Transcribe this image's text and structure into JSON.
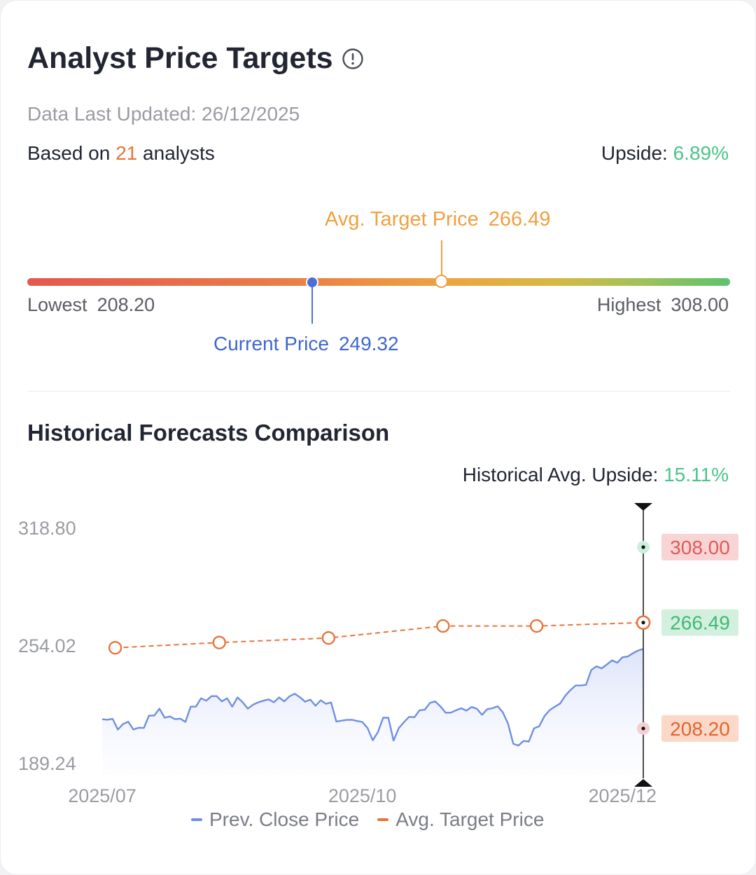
{
  "header": {
    "title": "Analyst Price Targets",
    "info_icon": "info-circle-icon",
    "last_updated": "Data Last Updated: 26/12/2025",
    "based_on_prefix": "Based on",
    "analysts_count": "21",
    "based_on_suffix": "analysts",
    "upside_label": "Upside:",
    "upside_value": "6.89%"
  },
  "price_range": {
    "avg_target_label": "Avg. Target Price",
    "avg_target_value": "266.49",
    "lowest_label": "Lowest",
    "lowest_value": "208.20",
    "highest_label": "Highest",
    "highest_value": "308.00",
    "current_label": "Current Price",
    "current_value": "249.32"
  },
  "historical": {
    "title": "Historical Forecasts Comparison",
    "avg_upside_label": "Historical Avg. Upside:",
    "avg_upside_value": "15.11%"
  },
  "colors": {
    "accent_orange": "#e8743b",
    "positive_green": "#4cc38a",
    "current_blue": "#4a6fd6",
    "target_orange": "#f0a040",
    "high_red": "#e5574e"
  },
  "chart_data": {
    "type": "line",
    "y_ticks": [
      "318.80",
      "254.02",
      "189.24"
    ],
    "ylim": [
      189.24,
      318.8
    ],
    "x_ticks": [
      "2025/07",
      "2025/10",
      "2025/12"
    ],
    "grid": false,
    "legend_position": "bottom",
    "series": [
      {
        "name": "Prev. Close Price",
        "color": "#6f8fe0",
        "points": [
          [
            0,
            213.3
          ],
          [
            2,
            213.0
          ],
          [
            4,
            213.5
          ],
          [
            6,
            207.6
          ],
          [
            8,
            210.6
          ],
          [
            10,
            211.9
          ],
          [
            12,
            207.6
          ],
          [
            14,
            208.6
          ],
          [
            16,
            208.5
          ],
          [
            18,
            215.3
          ],
          [
            20,
            215.3
          ],
          [
            22,
            219.1
          ],
          [
            24,
            214.1
          ],
          [
            26,
            214.8
          ],
          [
            28,
            213.3
          ],
          [
            30,
            213.6
          ],
          [
            32,
            211.8
          ],
          [
            34,
            220.2
          ],
          [
            36,
            220.2
          ],
          [
            38,
            224.8
          ],
          [
            40,
            223.5
          ],
          [
            42,
            226.0
          ],
          [
            44,
            226.0
          ],
          [
            46,
            223.1
          ],
          [
            48,
            224.8
          ],
          [
            50,
            220.2
          ],
          [
            52,
            225.3
          ],
          [
            54,
            222.6
          ],
          [
            56,
            219.1
          ],
          [
            58,
            221.3
          ],
          [
            60,
            222.6
          ],
          [
            62,
            223.5
          ],
          [
            64,
            224.2
          ],
          [
            66,
            222.6
          ],
          [
            68,
            225.3
          ],
          [
            70,
            223.1
          ],
          [
            72,
            225.9
          ],
          [
            74,
            227.3
          ],
          [
            76,
            225.4
          ],
          [
            78,
            222.9
          ],
          [
            80,
            224.1
          ],
          [
            82,
            220.7
          ],
          [
            84,
            223.7
          ],
          [
            86,
            221.8
          ],
          [
            88,
            222.5
          ],
          [
            90,
            212.0
          ],
          [
            92,
            212.5
          ],
          [
            94,
            212.9
          ],
          [
            96,
            213.0
          ],
          [
            98,
            212.3
          ],
          [
            100,
            211.8
          ],
          [
            102,
            208.4
          ],
          [
            104,
            201.7
          ],
          [
            106,
            206.2
          ],
          [
            108,
            214.1
          ],
          [
            110,
            214.1
          ],
          [
            112,
            201.5
          ],
          [
            114,
            208.4
          ],
          [
            116,
            211.7
          ],
          [
            118,
            214.6
          ],
          [
            120,
            214.4
          ],
          [
            122,
            218.2
          ],
          [
            124,
            218.5
          ],
          [
            126,
            222.3
          ],
          [
            128,
            223.1
          ],
          [
            130,
            220.4
          ],
          [
            132,
            216.9
          ],
          [
            134,
            216.9
          ],
          [
            136,
            218.2
          ],
          [
            138,
            219.3
          ],
          [
            140,
            218.0
          ],
          [
            142,
            220.0
          ],
          [
            144,
            219.1
          ],
          [
            146,
            215.7
          ],
          [
            148,
            218.8
          ],
          [
            150,
            219.3
          ],
          [
            152,
            220.4
          ],
          [
            154,
            217.1
          ],
          [
            156,
            210.8
          ],
          [
            158,
            199.8
          ],
          [
            160,
            198.8
          ],
          [
            162,
            201.3
          ],
          [
            164,
            201.0
          ],
          [
            166,
            208.3
          ],
          [
            168,
            209.4
          ],
          [
            170,
            215.0
          ],
          [
            172,
            218.3
          ],
          [
            174,
            220.2
          ],
          [
            176,
            221.9
          ],
          [
            178,
            226.2
          ],
          [
            180,
            229.3
          ],
          [
            182,
            231.9
          ],
          [
            184,
            231.9
          ],
          [
            186,
            232.2
          ],
          [
            188,
            240.4
          ],
          [
            190,
            242.4
          ],
          [
            192,
            241.3
          ],
          [
            194,
            243.4
          ],
          [
            196,
            245.7
          ],
          [
            198,
            244.4
          ],
          [
            200,
            247.4
          ],
          [
            202,
            247.8
          ],
          [
            204,
            249.6
          ],
          [
            206,
            251.1
          ],
          [
            208,
            252.0
          ]
        ]
      },
      {
        "name": "Avg. Target Price",
        "color": "#e8743b",
        "points": [
          [
            5,
            252.6
          ],
          [
            45,
            255.5
          ],
          [
            87,
            258.0
          ],
          [
            131,
            264.6
          ],
          [
            167,
            264.6
          ],
          [
            208,
            266.49
          ]
        ]
      }
    ],
    "markers_at_latest": [
      {
        "label": "308.00",
        "value": 308.0,
        "tag_bg": "#f9d4d4",
        "tag_color": "#e05a5a",
        "dot_color": "#cdeedd"
      },
      {
        "label": "266.49",
        "value": 266.49,
        "tag_bg": "#d3f0de",
        "tag_color": "#42b877",
        "dot_color": "#e8743b"
      },
      {
        "label": "208.20",
        "value": 208.2,
        "tag_bg": "#fbd8c8",
        "tag_color": "#e0662e",
        "dot_color": "#f4cfcf"
      }
    ],
    "legend": [
      "Prev. Close Price",
      "Avg. Target Price"
    ]
  }
}
